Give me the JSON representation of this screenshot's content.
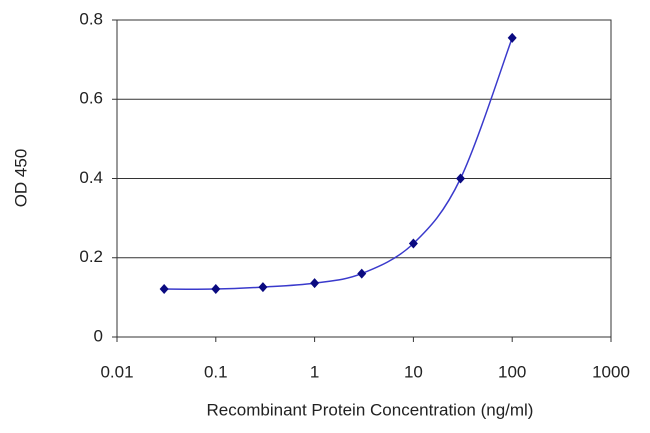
{
  "chart_data": {
    "type": "line",
    "x_label": "Recombinant Protein Concentration (ng/ml)",
    "y_label": "OD 450",
    "x": [
      0.03,
      0.1,
      0.3,
      1,
      3,
      10,
      30,
      100
    ],
    "series": [
      {
        "color": "#3a3acc",
        "marker_color": "#0a0a80",
        "values": [
          0.121,
          0.121,
          0.126,
          0.136,
          0.16,
          0.236,
          0.4,
          0.755
        ]
      }
    ],
    "xlog": true,
    "xlim": [
      0.01,
      1000
    ],
    "xticks": [
      0.01,
      0.1,
      1,
      10,
      100,
      1000
    ],
    "ylim": [
      0,
      0.8
    ],
    "yticks": [
      0,
      0.2,
      0.4,
      0.6,
      0.8
    ],
    "grid": true
  }
}
